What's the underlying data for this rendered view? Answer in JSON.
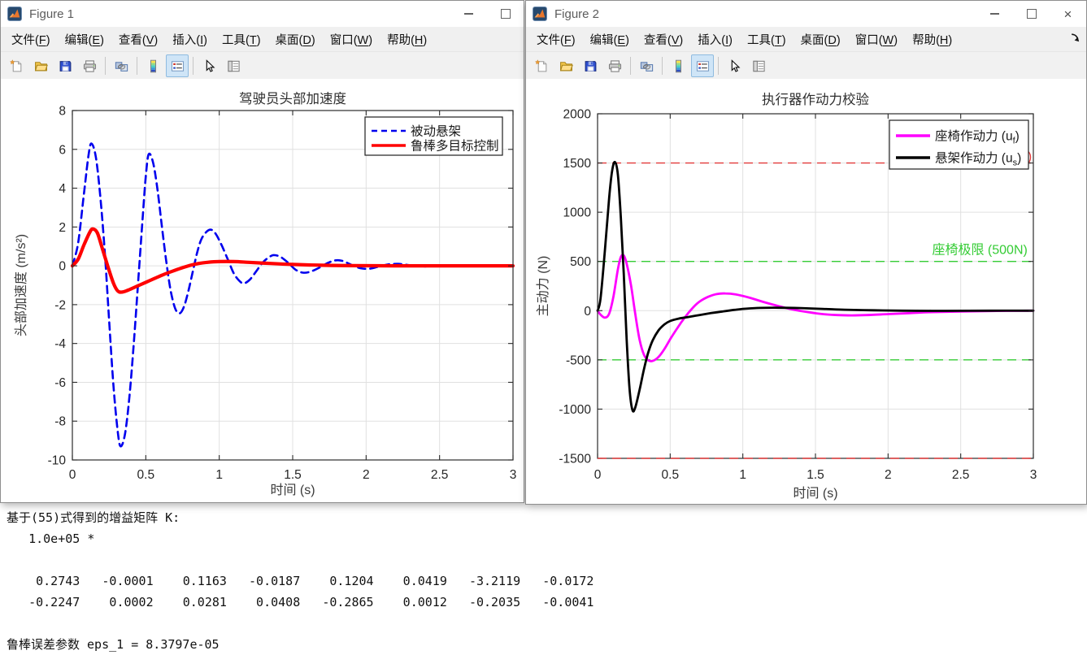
{
  "windows": [
    {
      "title": "Figure 1",
      "controls": [
        "minimize",
        "maximize"
      ],
      "has_dock_arrow": false
    },
    {
      "title": "Figure 2",
      "controls": [
        "minimize",
        "maximize",
        "close"
      ],
      "has_dock_arrow": true
    }
  ],
  "menu": {
    "items": [
      {
        "name": "file",
        "pre": "文件(",
        "key": "F",
        "post": ")"
      },
      {
        "name": "edit",
        "pre": "编辑(",
        "key": "E",
        "post": ")"
      },
      {
        "name": "view",
        "pre": "查看(",
        "key": "V",
        "post": ")"
      },
      {
        "name": "insert",
        "pre": "插入(",
        "key": "I",
        "post": ")"
      },
      {
        "name": "tools",
        "pre": "工具(",
        "key": "T",
        "post": ")"
      },
      {
        "name": "desktop",
        "pre": "桌面(",
        "key": "D",
        "post": ")"
      },
      {
        "name": "window",
        "pre": "窗口(",
        "key": "W",
        "post": ")"
      },
      {
        "name": "help",
        "pre": "帮助(",
        "key": "H",
        "post": ")"
      }
    ]
  },
  "toolbar": {
    "groups": [
      [
        "new-figure",
        "open-file",
        "save-figure",
        "print-figure"
      ],
      [
        "link-plot"
      ],
      [
        "insert-colorbar",
        "insert-legend"
      ],
      [
        "edit-plot",
        "property-inspector"
      ]
    ],
    "active": "insert-legend"
  },
  "chart_data": [
    {
      "type": "line",
      "title": "驾驶员头部加速度",
      "xlabel": "时间 (s)",
      "ylabel": "头部加速度 (m/s²)",
      "xlim": [
        0,
        3
      ],
      "ylim": [
        -10,
        8
      ],
      "grid": true,
      "legend_position": "northeast",
      "xticks": [
        0,
        0.5,
        1,
        1.5,
        2,
        2.5,
        3
      ],
      "xtick_labels": [
        "0",
        "0.5",
        "1",
        "1.5",
        "2",
        "2.5",
        "3"
      ],
      "yticks": [
        -10,
        -8,
        -6,
        -4,
        -2,
        0,
        2,
        4,
        6,
        8
      ],
      "ytick_labels": [
        "-10",
        "-8",
        "-6",
        "-4",
        "-2",
        "0",
        "2",
        "4",
        "6",
        "8"
      ],
      "series": [
        {
          "name": "被动悬架",
          "color": "#0000ee",
          "style": "dashed",
          "width": 2.6,
          "points": [
            [
              0,
              0
            ],
            [
              0.04,
              1.2
            ],
            [
              0.08,
              3.8
            ],
            [
              0.11,
              5.7
            ],
            [
              0.13,
              6.3
            ],
            [
              0.16,
              5.6
            ],
            [
              0.19,
              3.6
            ],
            [
              0.22,
              0.8
            ],
            [
              0.25,
              -2.8
            ],
            [
              0.28,
              -6.2
            ],
            [
              0.31,
              -8.6
            ],
            [
              0.33,
              -9.3
            ],
            [
              0.36,
              -8.6
            ],
            [
              0.39,
              -6.6
            ],
            [
              0.42,
              -3.8
            ],
            [
              0.45,
              -0.6
            ],
            [
              0.48,
              2.6
            ],
            [
              0.5,
              4.6
            ],
            [
              0.52,
              5.75
            ],
            [
              0.55,
              5.3
            ],
            [
              0.58,
              3.9
            ],
            [
              0.61,
              2.0
            ],
            [
              0.64,
              0.2
            ],
            [
              0.67,
              -1.3
            ],
            [
              0.7,
              -2.2
            ],
            [
              0.73,
              -2.45
            ],
            [
              0.76,
              -2.1
            ],
            [
              0.79,
              -1.3
            ],
            [
              0.82,
              -0.3
            ],
            [
              0.85,
              0.7
            ],
            [
              0.88,
              1.4
            ],
            [
              0.92,
              1.8
            ],
            [
              0.95,
              1.85
            ],
            [
              0.98,
              1.6
            ],
            [
              1.02,
              1.0
            ],
            [
              1.06,
              0.3
            ],
            [
              1.1,
              -0.4
            ],
            [
              1.14,
              -0.8
            ],
            [
              1.17,
              -0.9
            ],
            [
              1.21,
              -0.7
            ],
            [
              1.25,
              -0.3
            ],
            [
              1.3,
              0.2
            ],
            [
              1.35,
              0.5
            ],
            [
              1.38,
              0.55
            ],
            [
              1.42,
              0.45
            ],
            [
              1.47,
              0.15
            ],
            [
              1.52,
              -0.2
            ],
            [
              1.57,
              -0.35
            ],
            [
              1.62,
              -0.3
            ],
            [
              1.68,
              -0.1
            ],
            [
              1.74,
              0.15
            ],
            [
              1.79,
              0.28
            ],
            [
              1.84,
              0.25
            ],
            [
              1.9,
              0.05
            ],
            [
              1.96,
              -0.12
            ],
            [
              2.02,
              -0.15
            ],
            [
              2.08,
              -0.05
            ],
            [
              2.15,
              0.07
            ],
            [
              2.22,
              0.1
            ],
            [
              2.3,
              0.03
            ],
            [
              2.4,
              -0.03
            ],
            [
              2.5,
              0
            ],
            [
              2.7,
              0
            ],
            [
              3,
              0
            ]
          ]
        },
        {
          "name": "鲁棒多目标控制",
          "color": "#ff0000",
          "style": "solid",
          "width": 4.2,
          "points": [
            [
              0,
              0
            ],
            [
              0.04,
              0.35
            ],
            [
              0.08,
              1.1
            ],
            [
              0.12,
              1.75
            ],
            [
              0.14,
              1.9
            ],
            [
              0.17,
              1.7
            ],
            [
              0.2,
              1.0
            ],
            [
              0.24,
              0.0
            ],
            [
              0.28,
              -0.9
            ],
            [
              0.31,
              -1.3
            ],
            [
              0.34,
              -1.35
            ],
            [
              0.38,
              -1.25
            ],
            [
              0.44,
              -1.05
            ],
            [
              0.5,
              -0.85
            ],
            [
              0.56,
              -0.65
            ],
            [
              0.62,
              -0.45
            ],
            [
              0.68,
              -0.28
            ],
            [
              0.74,
              -0.12
            ],
            [
              0.8,
              0.02
            ],
            [
              0.86,
              0.12
            ],
            [
              0.92,
              0.18
            ],
            [
              1.0,
              0.22
            ],
            [
              1.1,
              0.22
            ],
            [
              1.2,
              0.18
            ],
            [
              1.35,
              0.12
            ],
            [
              1.5,
              0.07
            ],
            [
              1.7,
              0.03
            ],
            [
              1.9,
              0.01
            ],
            [
              2.2,
              0
            ],
            [
              2.6,
              0
            ],
            [
              3,
              0
            ]
          ]
        }
      ]
    },
    {
      "type": "line",
      "title": "执行器作动力校验",
      "xlabel": "时间 (s)",
      "ylabel": "主动力 (N)",
      "xlim": [
        0,
        3
      ],
      "ylim": [
        -1500,
        2000
      ],
      "grid": true,
      "legend_position": "northeast",
      "xticks": [
        0,
        0.5,
        1,
        1.5,
        2,
        2.5,
        3
      ],
      "xtick_labels": [
        "0",
        "0.5",
        "1",
        "1.5",
        "2",
        "2.5",
        "3"
      ],
      "yticks": [
        -1500,
        -1000,
        -500,
        0,
        500,
        1000,
        1500,
        2000
      ],
      "ytick_labels": [
        "-1500",
        "-1000",
        "-500",
        "0",
        "500",
        "1000",
        "1500",
        "2000"
      ],
      "series": [
        {
          "name": "座椅作动力 (uf)",
          "label_main": "座椅作动力 (u",
          "label_sub": "f",
          "label_post": ")",
          "color": "#ff00ff",
          "style": "solid",
          "width": 2.8,
          "points": [
            [
              0,
              0
            ],
            [
              0.02,
              -40
            ],
            [
              0.05,
              -70
            ],
            [
              0.08,
              -30
            ],
            [
              0.11,
              150
            ],
            [
              0.14,
              420
            ],
            [
              0.16,
              545
            ],
            [
              0.18,
              560
            ],
            [
              0.2,
              480
            ],
            [
              0.23,
              260
            ],
            [
              0.26,
              -40
            ],
            [
              0.29,
              -300
            ],
            [
              0.32,
              -450
            ],
            [
              0.35,
              -505
            ],
            [
              0.38,
              -510
            ],
            [
              0.42,
              -470
            ],
            [
              0.46,
              -390
            ],
            [
              0.5,
              -290
            ],
            [
              0.55,
              -175
            ],
            [
              0.6,
              -70
            ],
            [
              0.65,
              20
            ],
            [
              0.7,
              90
            ],
            [
              0.76,
              140
            ],
            [
              0.82,
              168
            ],
            [
              0.88,
              175
            ],
            [
              0.95,
              165
            ],
            [
              1.05,
              130
            ],
            [
              1.15,
              85
            ],
            [
              1.25,
              45
            ],
            [
              1.35,
              10
            ],
            [
              1.45,
              -15
            ],
            [
              1.55,
              -35
            ],
            [
              1.65,
              -45
            ],
            [
              1.75,
              -48
            ],
            [
              1.85,
              -45
            ],
            [
              2.0,
              -35
            ],
            [
              2.15,
              -25
            ],
            [
              2.3,
              -15
            ],
            [
              2.5,
              -8
            ],
            [
              2.75,
              -3
            ],
            [
              3,
              0
            ]
          ]
        },
        {
          "name": "悬架作动力 (us)",
          "label_main": "悬架作动力 (u",
          "label_sub": "s",
          "label_post": ")",
          "color": "#000000",
          "style": "solid",
          "width": 2.8,
          "points": [
            [
              0,
              0
            ],
            [
              0.02,
              120
            ],
            [
              0.05,
              600
            ],
            [
              0.08,
              1150
            ],
            [
              0.1,
              1420
            ],
            [
              0.12,
              1510
            ],
            [
              0.14,
              1380
            ],
            [
              0.16,
              950
            ],
            [
              0.18,
              380
            ],
            [
              0.2,
              -280
            ],
            [
              0.22,
              -790
            ],
            [
              0.24,
              -1010
            ],
            [
              0.26,
              -980
            ],
            [
              0.29,
              -800
            ],
            [
              0.32,
              -590
            ],
            [
              0.35,
              -420
            ],
            [
              0.38,
              -300
            ],
            [
              0.42,
              -200
            ],
            [
              0.46,
              -140
            ],
            [
              0.5,
              -105
            ],
            [
              0.56,
              -80
            ],
            [
              0.62,
              -65
            ],
            [
              0.7,
              -45
            ],
            [
              0.78,
              -25
            ],
            [
              0.86,
              -8
            ],
            [
              0.94,
              8
            ],
            [
              1.02,
              20
            ],
            [
              1.12,
              28
            ],
            [
              1.25,
              30
            ],
            [
              1.4,
              26
            ],
            [
              1.55,
              18
            ],
            [
              1.7,
              10
            ],
            [
              1.9,
              4
            ],
            [
              2.1,
              0
            ],
            [
              2.4,
              -2
            ],
            [
              2.7,
              0
            ],
            [
              3,
              0
            ]
          ]
        }
      ],
      "annotations": {
        "hlines": [
          {
            "y": 1500,
            "color": "#e23b3b",
            "dash": true
          },
          {
            "y": -1500,
            "color": "#e23b3b",
            "dash": true
          },
          {
            "y": 500,
            "color": "#35cc35",
            "dash": true
          },
          {
            "y": -500,
            "color": "#35cc35",
            "dash": true
          }
        ],
        "texts": [
          {
            "text": "座椅极限 (500N)",
            "color": "#35cc35",
            "x": 2.96,
            "y": 500,
            "dy": -9,
            "anchor": "end"
          },
          {
            "text": ")",
            "color": "#e23b3b",
            "x": 2.99,
            "y": 1500,
            "dy": -3,
            "anchor": "end"
          }
        ]
      }
    }
  ],
  "console": {
    "lines": [
      "基于(55)式得到的增益矩阵 K:",
      "   1.0e+05 *",
      "",
      "    0.2743   -0.0001    0.1163   -0.0187    0.1204    0.0419   -3.2119   -0.0172",
      "   -0.2247    0.0002    0.0281    0.0408   -0.2865    0.0012   -0.2035   -0.0041",
      "",
      "鲁棒误差参数 eps_1 = 8.3797e-05"
    ]
  }
}
